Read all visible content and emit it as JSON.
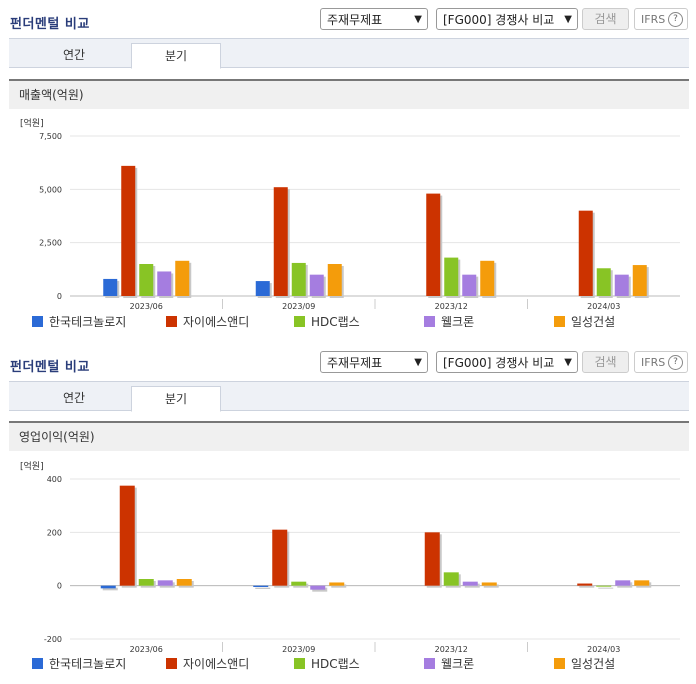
{
  "header": {
    "title": "펀더멘털 비교",
    "select_report": "주재무제표",
    "select_compare": "[FG000] 경쟁사 비교",
    "search_label": "검색",
    "ifrs_label": "IFRS",
    "help_glyph": "?"
  },
  "tabs": [
    {
      "label": "연간"
    },
    {
      "label": "분기"
    }
  ],
  "active_tab": "분기",
  "series_colors": [
    "#2b6ad6",
    "#cc3300",
    "#88c425",
    "#a57de0",
    "#f49c0b"
  ],
  "series_names": [
    "한국테크놀로지",
    "자이에스앤디",
    "HDC랩스",
    "웰크론",
    "일성건설"
  ],
  "chart_data": [
    {
      "type": "bar",
      "title": "매출액(억원)",
      "unit": "[억원]",
      "categories": [
        "2023/06",
        "2023/09",
        "2023/12",
        "2024/03"
      ],
      "ylim": [
        0,
        7500
      ],
      "yticks": [
        0,
        2500,
        5000,
        7500
      ],
      "ytick_labels": [
        "0",
        "2,500",
        "5,000",
        "7,500"
      ],
      "grid": true,
      "legend": "bottom",
      "series": [
        {
          "name": "한국테크놀로지",
          "values": [
            800,
            700,
            null,
            null
          ]
        },
        {
          "name": "자이에스앤디",
          "values": [
            6100,
            5100,
            4800,
            4000
          ]
        },
        {
          "name": "HDC랩스",
          "values": [
            1500,
            1550,
            1800,
            1300
          ]
        },
        {
          "name": "웰크론",
          "values": [
            1150,
            1000,
            1000,
            1000
          ]
        },
        {
          "name": "일성건설",
          "values": [
            1650,
            1500,
            1650,
            1450
          ]
        }
      ]
    },
    {
      "type": "bar",
      "title": "영업이익(억원)",
      "unit": "[억원]",
      "categories": [
        "2023/06",
        "2023/09",
        "2023/12",
        "2024/03"
      ],
      "ylim": [
        -200,
        400
      ],
      "yticks": [
        -200,
        0,
        200,
        400
      ],
      "ytick_labels": [
        "-200",
        "0",
        "200",
        "400"
      ],
      "grid": true,
      "legend": "bottom",
      "series": [
        {
          "name": "한국테크놀로지",
          "values": [
            -10,
            -5,
            null,
            null
          ]
        },
        {
          "name": "자이에스앤디",
          "values": [
            375,
            210,
            200,
            8
          ]
        },
        {
          "name": "HDC랩스",
          "values": [
            25,
            15,
            50,
            -3
          ]
        },
        {
          "name": "웰크론",
          "values": [
            20,
            -15,
            15,
            20
          ]
        },
        {
          "name": "일성건설",
          "values": [
            25,
            12,
            12,
            20
          ]
        }
      ]
    }
  ]
}
